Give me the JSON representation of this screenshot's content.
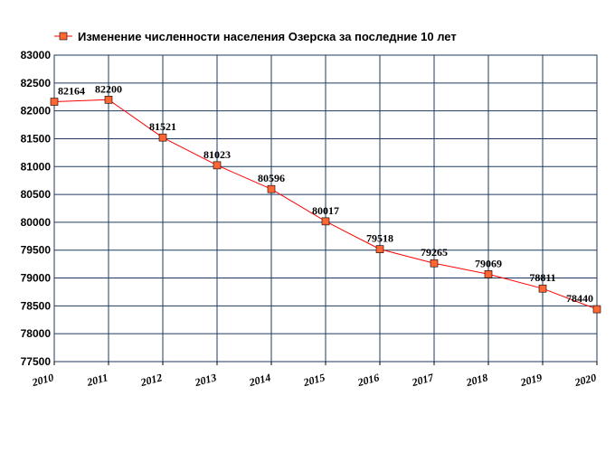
{
  "chart_data": {
    "type": "line",
    "title": "",
    "xlabel": "",
    "ylabel": "",
    "x": [
      "2010",
      "2011",
      "2012",
      "2013",
      "2014",
      "2015",
      "2016",
      "2017",
      "2018",
      "2019",
      "2020"
    ],
    "series": [
      {
        "name": "Изменение численности населения Озерска за последние 10 лет",
        "values": [
          82164,
          82200,
          81521,
          81023,
          80596,
          80017,
          79518,
          79265,
          79069,
          78811,
          78440
        ],
        "color": "#ff0000",
        "marker_color": "#ff6633"
      }
    ],
    "ylim": [
      77500,
      83000
    ],
    "yticks": [
      83000,
      82500,
      82000,
      81500,
      81000,
      80500,
      80000,
      79500,
      79000,
      78500,
      78000,
      77500
    ],
    "grid": true,
    "grid_color": "#1f3a5f",
    "legend_position": "top-left"
  }
}
